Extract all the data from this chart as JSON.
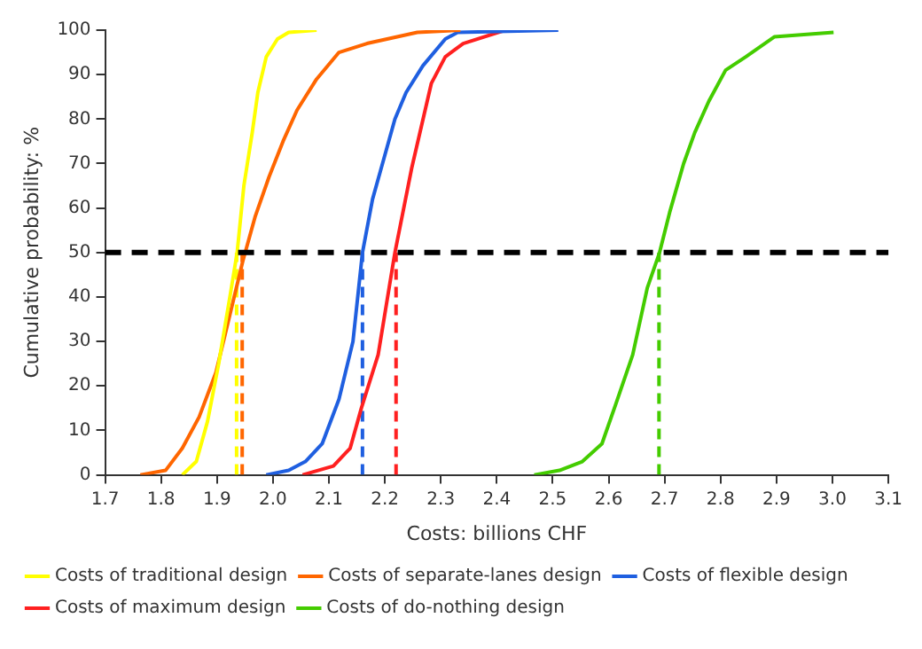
{
  "chart_data": {
    "type": "line",
    "xlabel": "Costs: billions CHF",
    "ylabel": "Cumulative probability: %",
    "xlim": [
      1.7,
      3.1
    ],
    "xticks": [
      {
        "value": 1.7,
        "label": "1.7"
      },
      {
        "value": 1.8,
        "label": "1.8"
      },
      {
        "value": 1.9,
        "label": "1.9"
      },
      {
        "value": 2,
        "label": "2.0"
      },
      {
        "value": 2.1,
        "label": "2.1"
      },
      {
        "value": 2.2,
        "label": "2.2"
      },
      {
        "value": 2.3,
        "label": "2.3"
      },
      {
        "value": 2.4,
        "label": "2.4"
      },
      {
        "value": 2.5,
        "label": "2.5"
      },
      {
        "value": 2.6,
        "label": "2.6"
      },
      {
        "value": 2.7,
        "label": "2.7"
      },
      {
        "value": 2.8,
        "label": "2.8"
      },
      {
        "value": 2.9,
        "label": "2.9"
      },
      {
        "value": 3,
        "label": "3.0"
      },
      {
        "value": 3.1,
        "label": "3.1"
      }
    ],
    "ylim": [
      0,
      100
    ],
    "yticks": [
      0,
      10,
      20,
      30,
      40,
      50,
      60,
      70,
      80,
      90,
      100
    ],
    "grid": false,
    "legend": "bottom",
    "marker": "none",
    "line_style": "solid",
    "ref_lines": [
      {
        "axis": "y",
        "value": 50,
        "color": "#000000",
        "line_style": "dashed"
      }
    ],
    "series": [
      {
        "name": "Costs of traditional design",
        "color": "#ffff00",
        "x": [
          1.838,
          1.863,
          1.883,
          1.903,
          1.923,
          1.936,
          1.948,
          1.963,
          1.973,
          1.988,
          2.008,
          2.028,
          2.078
        ],
        "values": [
          0,
          3,
          12,
          25,
          40,
          50,
          65,
          77,
          86,
          94,
          98,
          99.5,
          100
        ]
      },
      {
        "name": "Costs of separate-lanes design",
        "color": "#ff6600",
        "x": [
          1.763,
          1.808,
          1.838,
          1.868,
          1.898,
          1.923,
          1.946,
          1.968,
          1.993,
          2.018,
          2.043,
          2.078,
          2.118,
          2.168,
          2.258,
          2.335
        ],
        "values": [
          0,
          1,
          6,
          13,
          23,
          36,
          48,
          58,
          67,
          75,
          82,
          89,
          95,
          97,
          99.5,
          100
        ]
      },
      {
        "name": "Costs of flexible design",
        "color": "#1f5fe0",
        "x": [
          1.988,
          2.028,
          2.058,
          2.088,
          2.118,
          2.143,
          2.16,
          2.178,
          2.198,
          2.218,
          2.238,
          2.268,
          2.308,
          2.33,
          2.51
        ],
        "values": [
          0,
          1,
          3,
          7,
          17,
          30,
          50,
          62,
          71,
          80,
          86,
          92,
          98,
          99.5,
          100
        ]
      },
      {
        "name": "Costs of maximum design",
        "color": "#ff2020",
        "x": [
          2.053,
          2.108,
          2.138,
          2.158,
          2.188,
          2.218,
          2.248,
          2.283,
          2.308,
          2.34,
          2.415
        ],
        "values": [
          0,
          2,
          6,
          15,
          27,
          50,
          69,
          88,
          94,
          97,
          100
        ]
      },
      {
        "name": "Costs of do-nothing design",
        "color": "#44cc00",
        "x": [
          2.467,
          2.512,
          2.553,
          2.588,
          2.613,
          2.643,
          2.669,
          2.691,
          2.709,
          2.734,
          2.754,
          2.779,
          2.809,
          2.845,
          2.896,
          3.002
        ],
        "values": [
          0,
          1,
          3,
          7,
          16,
          27,
          42,
          50,
          59,
          70,
          77,
          84,
          91,
          94,
          98.5,
          99.5
        ]
      },
      {
        "type": "line",
        "color": "#ffff00",
        "line_style": "dashed",
        "x": [
          1.935,
          1.935
        ],
        "values": [
          0,
          50
        ]
      },
      {
        "type": "line",
        "color": "#ff6600",
        "line_style": "dashed",
        "x": [
          1.945,
          1.945
        ],
        "values": [
          0,
          50
        ]
      },
      {
        "type": "line",
        "color": "#1f5fe0",
        "line_style": "dashed",
        "x": [
          2.16,
          2.16
        ],
        "values": [
          0,
          50
        ]
      },
      {
        "type": "line",
        "color": "#ff2020",
        "line_style": "dashed",
        "x": [
          2.22,
          2.22
        ],
        "values": [
          0,
          50
        ]
      },
      {
        "type": "line",
        "color": "#44cc00",
        "line_style": "dashed",
        "x": [
          2.69,
          2.69
        ],
        "values": [
          0,
          50
        ]
      }
    ]
  }
}
